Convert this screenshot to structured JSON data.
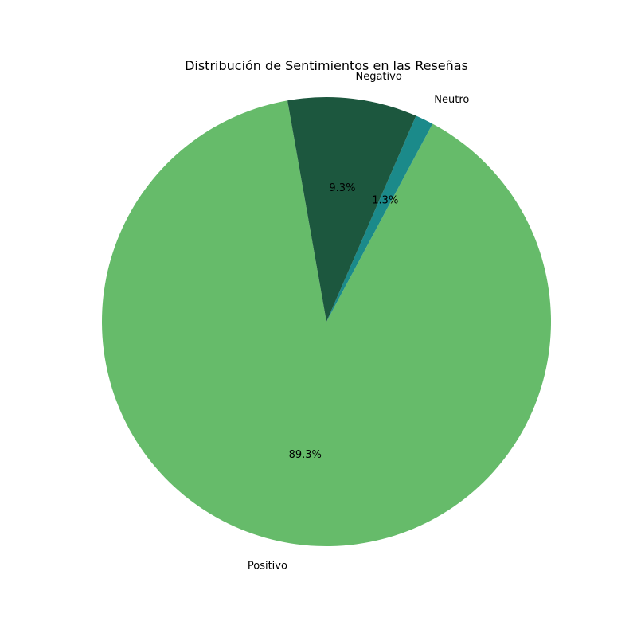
{
  "chart_data": {
    "type": "pie",
    "title": "Distribución de Sentimientos en las Reseñas",
    "slices": [
      {
        "label": "Positivo",
        "value": 89.3,
        "pct_label": "89.3%",
        "color": "#66bb6a"
      },
      {
        "label": "Neutro",
        "value": 1.3,
        "pct_label": "1.3%",
        "color": "#1b8a8a"
      },
      {
        "label": "Negativo",
        "value": 9.3,
        "pct_label": "9.3%",
        "color": "#1c573e"
      }
    ],
    "start_angle_deg": 100,
    "direction": "counterclockwise"
  }
}
